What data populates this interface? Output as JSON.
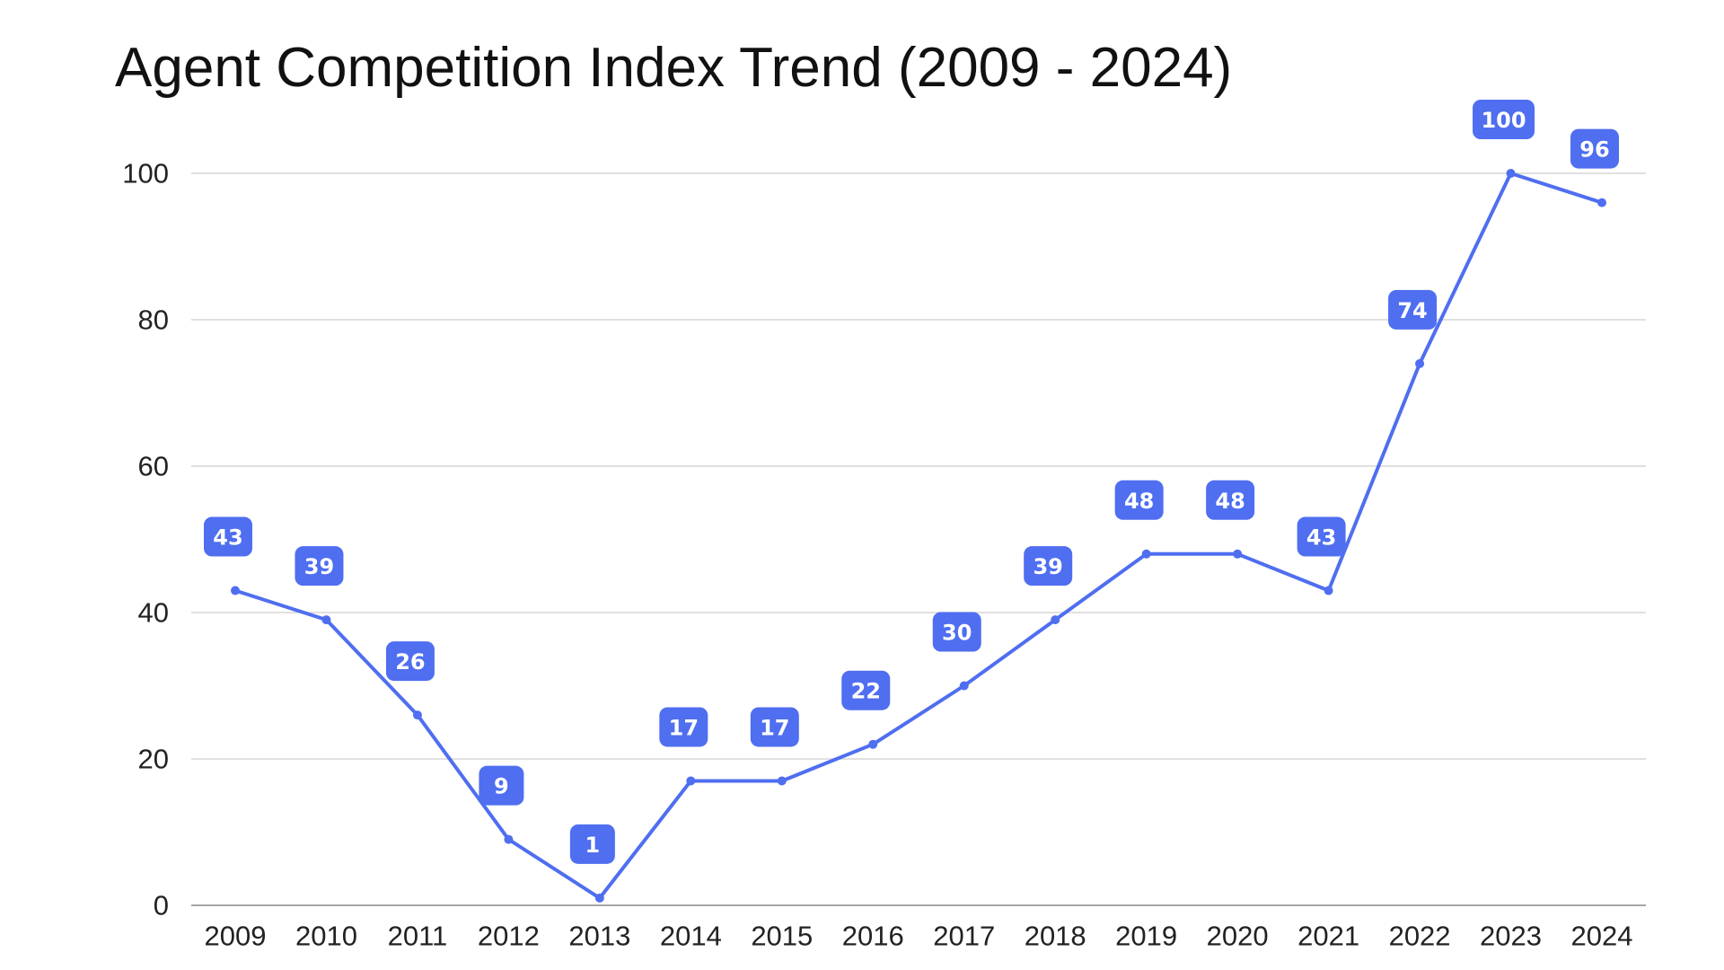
{
  "chart_data": {
    "type": "line",
    "title": "Agent Competition Index Trend (2009 - 2024)",
    "xlabel": "",
    "ylabel": "",
    "categories": [
      "2009",
      "2010",
      "2011",
      "2012",
      "2013",
      "2014",
      "2015",
      "2016",
      "2017",
      "2018",
      "2019",
      "2020",
      "2021",
      "2022",
      "2023",
      "2024"
    ],
    "series": [
      {
        "values": [
          43,
          39,
          26,
          9,
          1,
          17,
          17,
          22,
          30,
          39,
          48,
          48,
          43,
          74,
          100,
          96
        ]
      }
    ],
    "y_ticks": [
      0,
      20,
      40,
      60,
      80,
      100
    ],
    "ylim": [
      0,
      100
    ],
    "grid": true,
    "legend": "none",
    "data_labels": true,
    "colors": {
      "series": "#4f6ef0",
      "label_bg": "#4f6ef0",
      "label_text": "#ffffff",
      "grid": "#d6d6d6"
    }
  }
}
